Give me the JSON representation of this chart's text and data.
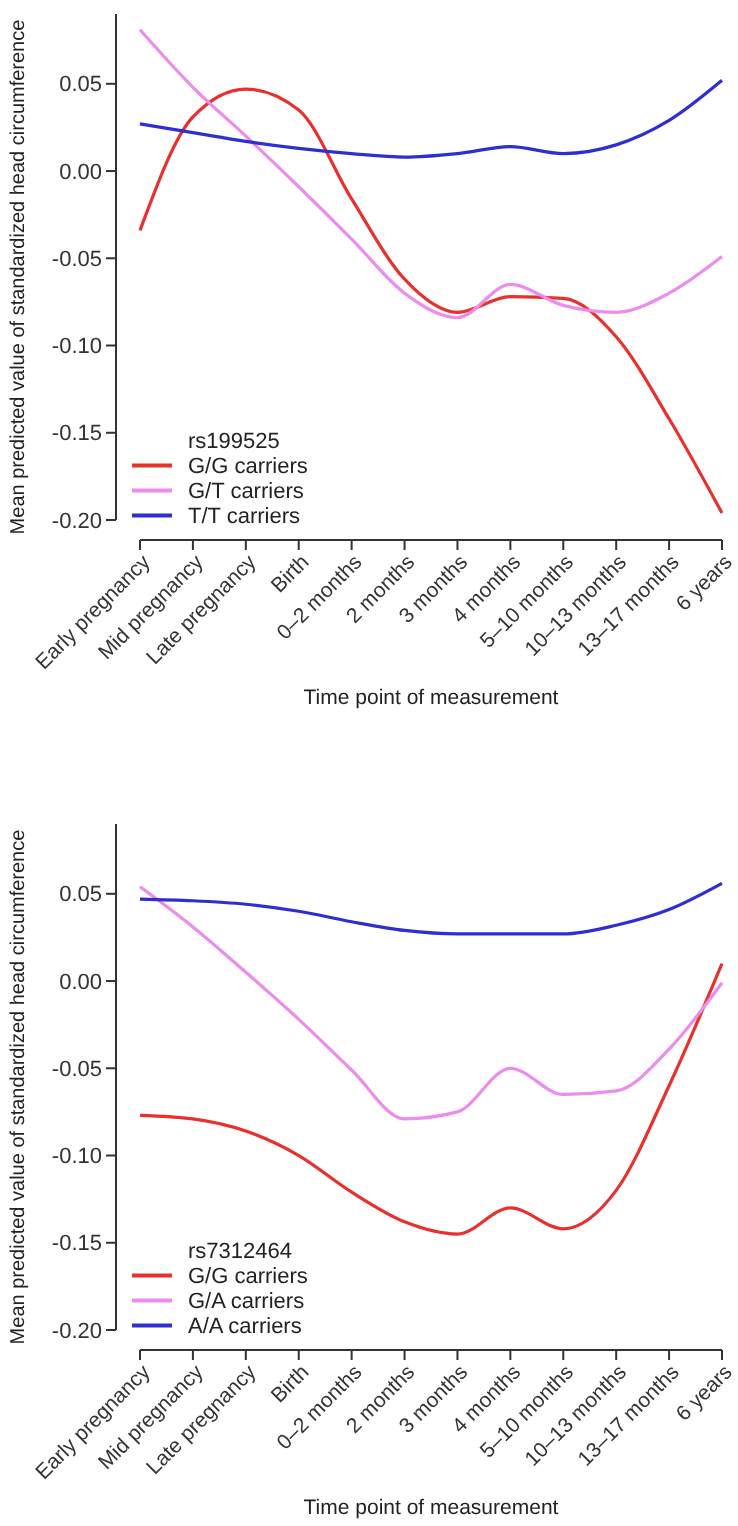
{
  "chart_data": [
    {
      "type": "line",
      "xlabel": "Time point of measurement",
      "ylabel": "Mean predicted value of standardized head circumference",
      "legend_title": "rs199525",
      "legend": "bottom left",
      "categories": [
        "Early pregnancy",
        "Mid pregnancy",
        "Late pregnancy",
        "Birth",
        "0–2 months",
        "2 months",
        "3 months",
        "4 months",
        "5–10 months",
        "10–13 months",
        "13–17 months",
        "6 years"
      ],
      "ylim": [
        -0.2,
        0.09
      ],
      "yticks": [
        {
          "value": -0.2,
          "label": "-0.20"
        },
        {
          "value": -0.15,
          "label": "-0.15"
        },
        {
          "value": -0.1,
          "label": "-0.10"
        },
        {
          "value": -0.05,
          "label": "-0.05"
        },
        {
          "value": 0,
          "label": "0.00"
        },
        {
          "value": 0.05,
          "label": "0.05"
        }
      ],
      "series": [
        {
          "name": "G/G carriers",
          "color": "#e8302e",
          "values": [
            -0.034,
            0.031,
            0.047,
            0.035,
            -0.016,
            -0.062,
            -0.081,
            -0.072,
            -0.073,
            -0.095,
            -0.142,
            -0.196
          ]
        },
        {
          "name": "G/T carriers",
          "color": "#ec8cec",
          "values": [
            0.081,
            0.048,
            0.02,
            -0.009,
            -0.039,
            -0.07,
            -0.084,
            -0.065,
            -0.077,
            -0.081,
            -0.07,
            -0.049
          ]
        },
        {
          "name": "T/T carriers",
          "color": "#2e2ed2",
          "values": [
            0.027,
            0.022,
            0.017,
            0.013,
            0.01,
            0.008,
            0.01,
            0.014,
            0.01,
            0.015,
            0.029,
            0.052
          ]
        }
      ]
    },
    {
      "type": "line",
      "xlabel": "Time point of measurement",
      "ylabel": "Mean predicted value of standardized head circumference",
      "legend_title": "rs7312464",
      "legend": "bottom left",
      "categories": [
        "Early pregnancy",
        "Mid pregnancy",
        "Late pregnancy",
        "Birth",
        "0–2 months",
        "2 months",
        "3 months",
        "4 months",
        "5–10 months",
        "10–13 months",
        "13–17 months",
        "6 years"
      ],
      "ylim": [
        -0.2,
        0.09
      ],
      "yticks": [
        {
          "value": -0.2,
          "label": "-0.20"
        },
        {
          "value": -0.15,
          "label": "-0.15"
        },
        {
          "value": -0.1,
          "label": "-0.10"
        },
        {
          "value": -0.05,
          "label": "-0.05"
        },
        {
          "value": 0,
          "label": "0.00"
        },
        {
          "value": 0.05,
          "label": "0.05"
        }
      ],
      "series": [
        {
          "name": "G/G carriers",
          "color": "#e8302e",
          "values": [
            -0.077,
            -0.079,
            -0.086,
            -0.1,
            -0.121,
            -0.138,
            -0.145,
            -0.13,
            -0.142,
            -0.12,
            -0.06,
            0.01
          ]
        },
        {
          "name": "G/A carriers",
          "color": "#ec8cec",
          "values": [
            0.054,
            0.031,
            0.005,
            -0.022,
            -0.051,
            -0.079,
            -0.075,
            -0.05,
            -0.065,
            -0.063,
            -0.039,
            -0.001
          ]
        },
        {
          "name": "A/A carriers",
          "color": "#2e2ed2",
          "values": [
            0.047,
            0.046,
            0.044,
            0.04,
            0.034,
            0.029,
            0.027,
            0.027,
            0.027,
            0.032,
            0.041,
            0.056
          ]
        }
      ]
    }
  ]
}
